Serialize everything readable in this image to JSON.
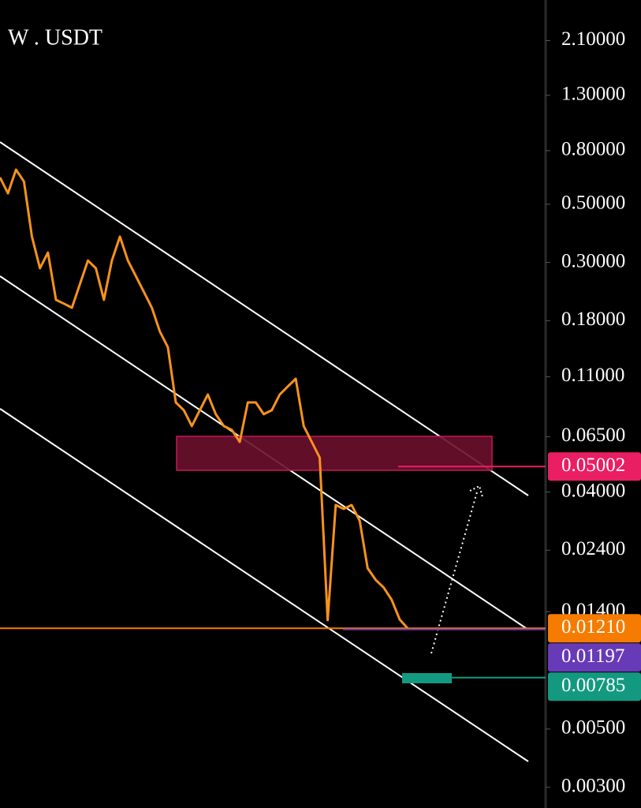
{
  "chart_data": {
    "type": "line",
    "title": "W . USDT",
    "log_scale": true,
    "color": "#f7931a",
    "values": [
      0.632,
      0.55,
      0.677,
      0.61,
      0.376,
      0.285,
      0.327,
      0.216,
      0.209,
      0.2015,
      0.248,
      0.305,
      0.285,
      0.216,
      0.305,
      0.376,
      0.305,
      0.266,
      0.2315,
      0.2015,
      0.1637,
      0.1426,
      0.0878,
      0.082,
      0.0714,
      0.082,
      0.0941,
      0.0792,
      0.0714,
      0.069,
      0.0621,
      0.0878,
      0.0878,
      0.0792,
      0.082,
      0.0941,
      0.1009,
      0.1081,
      0.0714,
      0.0621,
      0.0541,
      0.013,
      0.0357,
      0.0345,
      0.0357,
      0.0311,
      0.0205,
      0.0185,
      0.0173,
      0.01555,
      0.01308,
      0.0121
    ],
    "ylim": [
      0.0025,
      3.0
    ],
    "yticks": [
      {
        "value": 2.1,
        "label": "2.10000"
      },
      {
        "value": 1.3,
        "label": "1.30000"
      },
      {
        "value": 0.8,
        "label": "0.80000"
      },
      {
        "value": 0.5,
        "label": "0.50000"
      },
      {
        "value": 0.3,
        "label": "0.30000"
      },
      {
        "value": 0.18,
        "label": "0.18000"
      },
      {
        "value": 0.11,
        "label": "0.11000"
      },
      {
        "value": 0.065,
        "label": "0.06500"
      },
      {
        "value": 0.04,
        "label": "0.04000"
      },
      {
        "value": 0.024,
        "label": "0.02400"
      },
      {
        "value": 0.014,
        "label": "0.01400"
      },
      {
        "value": 0.005,
        "label": "0.00500"
      },
      {
        "value": 0.003,
        "label": "0.00300"
      }
    ],
    "price_labels": [
      {
        "value": 0.05002,
        "label": "0.05002",
        "color": "#e91e63"
      },
      {
        "value": 0.0121,
        "label": "0.01210",
        "color": "#f57c00"
      },
      {
        "value": 0.01197,
        "label": "0.01197",
        "color": "#673ab7"
      },
      {
        "value": 0.00785,
        "label": "0.00785",
        "color": "#149981"
      }
    ]
  }
}
